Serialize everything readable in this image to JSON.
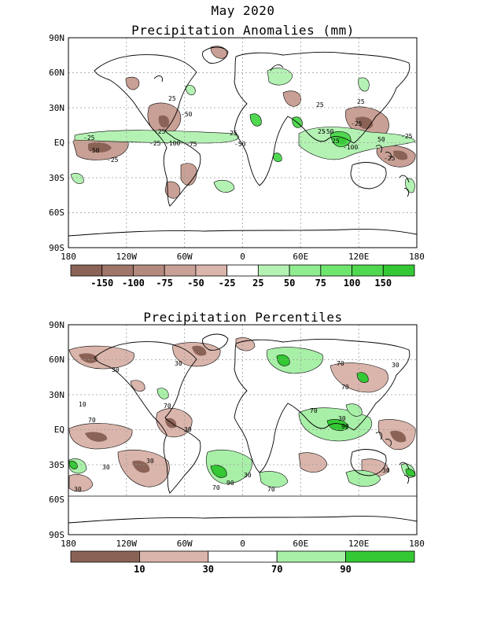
{
  "header": {
    "main_title": "May 2020",
    "panel1_title": "Precipitation Anomalies (mm)",
    "panel2_title": "Precipitation Percentiles"
  },
  "axes": {
    "lat_labels": [
      "90N",
      "60N",
      "30N",
      "EQ",
      "30S",
      "60S",
      "90S"
    ],
    "lon_labels": [
      "180",
      "120W",
      "60W",
      "0",
      "60E",
      "120E",
      "180"
    ]
  },
  "colors": {
    "brown_dark": "#8b6356",
    "brown_mid": "#b48a7e",
    "brown_light": "#dab5ab",
    "green_light": "#a8f0a8",
    "green_mid": "#6ee66e",
    "green_dark": "#34c934",
    "coast": "#000000",
    "grid": "#9a9a9a"
  },
  "panel1": {
    "colorbar": {
      "colors": [
        "#8b6356",
        "#a0756a",
        "#b48a7e",
        "#c9a095",
        "#dab5ab",
        "#ffffff",
        "#b4f2b4",
        "#90ec90",
        "#6ee66e",
        "#50d850",
        "#34c934"
      ],
      "labels": [
        "-150",
        "-100",
        "-75",
        "-50",
        "-25",
        "25",
        "50",
        "75",
        "100",
        "150"
      ]
    },
    "contour_labels": [
      "-50",
      "-25",
      "-25",
      "-100",
      "-50",
      "-25",
      "-75",
      "-25",
      "25",
      "-50",
      "25",
      "25",
      "25",
      "25",
      "-50",
      "-25",
      "25",
      "50",
      "-100",
      "-25",
      "-25"
    ]
  },
  "panel2": {
    "colorbar": {
      "colors": [
        "#8b6356",
        "#dab5ab",
        "#ffffff",
        "#a8f0a8",
        "#34c934"
      ],
      "labels": [
        "10",
        "30",
        "70",
        "90"
      ]
    },
    "contour_labels": [
      "30",
      "30",
      "10",
      "70",
      "70",
      "30",
      "30",
      "30",
      "30",
      "90",
      "30",
      "70",
      "70",
      "70",
      "30",
      "70",
      "30",
      "70",
      "90",
      "30"
    ]
  }
}
